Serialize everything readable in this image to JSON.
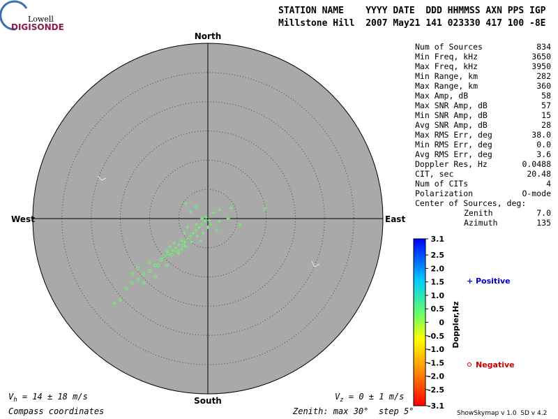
{
  "header": {
    "logo_top": "Lowell",
    "logo_bottom": "DIGISONDE",
    "labels_line": "STATION NAME    YYYY DATE  DDD HHMMSS AXN PPS IGP",
    "values_line": "Millstone Hill  2007 May21 141 023330 417 100 -8E"
  },
  "stats": {
    "rows": [
      [
        "Num of Sources",
        "834"
      ],
      [
        "Min Freq, kHz",
        "3650"
      ],
      [
        "Max Freq, kHz",
        "3950"
      ],
      [
        "Min Range, km",
        "282"
      ],
      [
        "Max Range, km",
        "360"
      ],
      [
        "Max Amp, dB",
        "58"
      ],
      [
        "Max SNR Amp, dB",
        "57"
      ],
      [
        "Min SNR Amp, dB",
        "15"
      ],
      [
        "Avg SNR Amp, dB",
        "28"
      ],
      [
        "Max RMS Err, deg",
        "38.0"
      ],
      [
        "Min RMS Err, deg",
        "0.0"
      ],
      [
        "Avg RMS Err, deg",
        "3.6"
      ],
      [
        "Doppler Res, Hz",
        "0.0488"
      ],
      [
        "CIT, sec",
        "20.48"
      ],
      [
        "Num of CITs",
        "4"
      ],
      [
        "Polarization",
        "O-mode"
      ]
    ],
    "center_label": "Center of Sources, deg:",
    "zenith": [
      "Zenith",
      "7.0"
    ],
    "azimuth": [
      "Azimuth",
      "135"
    ]
  },
  "skymap": {
    "north": "North",
    "south": "South",
    "west": "West",
    "east": "East",
    "positive_color": "#66ff66",
    "negative_color": "#66ff66",
    "positive": [
      [
        -5.5,
        -5.0
      ],
      [
        -5,
        -4.5
      ],
      [
        -4.5,
        -5.2
      ],
      [
        -6,
        -5.5
      ],
      [
        -4,
        -4
      ],
      [
        -3.5,
        -3.5
      ],
      [
        -6.5,
        -4.8
      ],
      [
        -5,
        -6
      ],
      [
        -3,
        -3
      ],
      [
        -2.5,
        -2.5
      ],
      [
        -2,
        -2
      ],
      [
        -1.5,
        -1.5
      ],
      [
        -1,
        -1
      ],
      [
        -4.5,
        -3.8
      ],
      [
        -5.8,
        -4.2
      ],
      [
        -3.8,
        -4.8
      ],
      [
        -2.8,
        -4
      ],
      [
        -1.8,
        -3
      ],
      [
        -0.5,
        -0.5
      ],
      [
        -0.3,
        0.2
      ],
      [
        0.2,
        -0.3
      ],
      [
        -1,
        0
      ],
      [
        -3.5,
        -1.5
      ],
      [
        -4,
        -2.5
      ],
      [
        -2,
        -1
      ],
      [
        -0.8,
        -2.5
      ],
      [
        0,
        -1.5
      ],
      [
        0.5,
        -1
      ],
      [
        -1.2,
        -3.8
      ],
      [
        2,
        1.5
      ],
      [
        3.5,
        0
      ],
      [
        5.5,
        -1
      ],
      [
        4,
        1.8
      ],
      [
        9.8,
        1.7
      ],
      [
        1,
        1
      ],
      [
        -3.8,
        2.6
      ],
      [
        -3,
        1.1
      ],
      [
        2,
        -0.5
      ],
      [
        1.5,
        -2
      ],
      [
        -16,
        -14.5
      ],
      [
        -15,
        -14
      ]
    ],
    "negative": [
      [
        -7,
        -5.5
      ],
      [
        -7.5,
        -6.5
      ],
      [
        -6.2,
        -6.2
      ],
      [
        -8,
        -7
      ],
      [
        -9,
        -8
      ],
      [
        -10,
        -9
      ],
      [
        -11,
        -9.5
      ],
      [
        -12,
        -10.5
      ],
      [
        -13,
        -11
      ],
      [
        -14,
        -12
      ],
      [
        -11,
        -11
      ],
      [
        -9,
        -10
      ],
      [
        -8.5,
        -8
      ],
      [
        -13,
        -9.5
      ],
      [
        -7,
        -8
      ],
      [
        -10,
        -7.5
      ],
      [
        -12,
        -8.5
      ],
      [
        -5.2,
        -5.6
      ],
      [
        -4.2,
        -4.6
      ],
      [
        -6.8,
        -6.0
      ],
      [
        -2,
        2
      ]
    ]
  },
  "colorbar": {
    "title": "Doppler,Hz",
    "ticks": [
      3.1,
      2.5,
      {
        "value": 2,
        "label": "2.0"
      },
      1.5,
      {
        "value": 1,
        "label": "1.0"
      },
      0.5,
      0,
      -0.5,
      {
        "value": -1,
        "label": "-1.0"
      },
      -1.5,
      {
        "value": -2,
        "label": "-2.0"
      },
      -2.5,
      -3.1
    ],
    "positive": "Positive",
    "negative": "Negative"
  },
  "footer": {
    "vh_symbol": "V",
    "vh_sub": "h",
    "vh_text": " = 14 ± 18 m/s",
    "vz_symbol": "V",
    "vz_sub": "z",
    "vz_text": " = 0 ± 1 m/s",
    "compass": "Compass coordinates",
    "zenith_note": "Zenith: max 30°  step 5°",
    "version": "ShowSkymap v 1.0  SD v 4.2"
  }
}
